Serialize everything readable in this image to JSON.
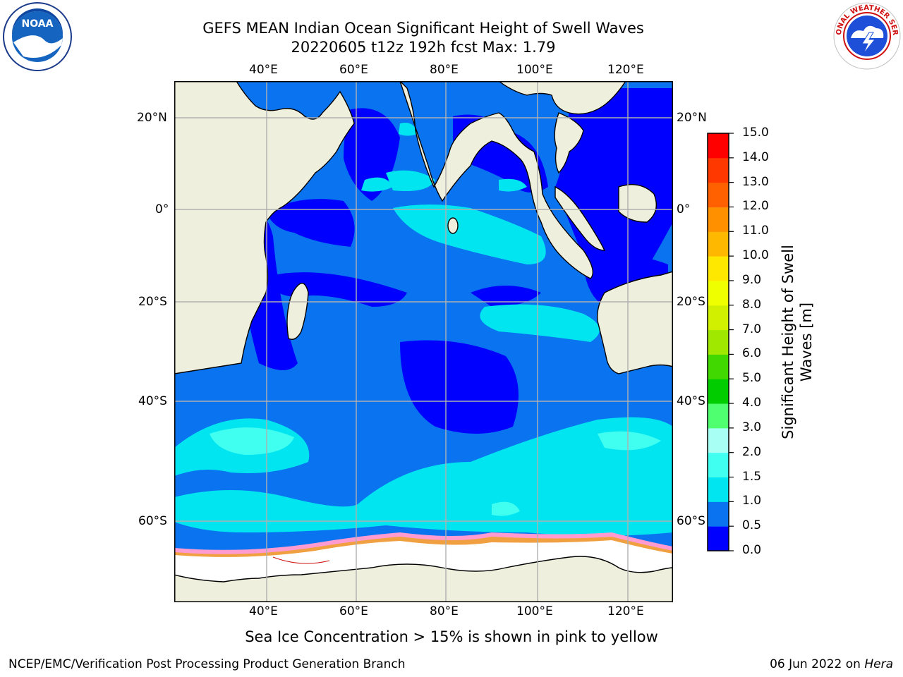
{
  "title_line1": "GEFS MEAN Indian Ocean Significant Height of Swell Waves",
  "title_line2": "20220605 t12z 192h fcst   Max: 1.79",
  "colorbar": {
    "label_line1": "Significant Height of Swell",
    "label_line2": "Waves [m]",
    "ticks": [
      "0.0",
      "0.5",
      "1.0",
      "1.5",
      "2.0",
      "3.0",
      "4.0",
      "5.0",
      "6.0",
      "7.0",
      "8.0",
      "9.0",
      "10.0",
      "11.0",
      "12.0",
      "13.0",
      "14.0",
      "15.0"
    ],
    "colors": [
      "#0000ff",
      "#0a74f0",
      "#00e5f0",
      "#40fff0",
      "#a8fff4",
      "#50ff70",
      "#00cc00",
      "#40d800",
      "#a0e800",
      "#d0f000",
      "#f0ff00",
      "#ffe800",
      "#ffb800",
      "#ff9000",
      "#ff6000",
      "#ff3800",
      "#ff0000"
    ]
  },
  "axes": {
    "lon_labels": [
      "40°E",
      "60°E",
      "80°E",
      "100°E",
      "120°E"
    ],
    "lat_labels_left": [
      "20°N",
      "0°",
      "20°S",
      "40°S",
      "60°S"
    ],
    "lat_labels_right": [
      "20°N",
      "0°",
      "20°S",
      "40°S",
      "60°S"
    ]
  },
  "caption": "Sea Ice Concentration > 15% is shown in pink to yellow",
  "footer_left": "NCEP/EMC/Verification Post Processing Product Generation Branch",
  "footer_right_prefix": "06 Jun 2022 on ",
  "footer_right_host": "Hera",
  "logos": {
    "left": "NOAA",
    "right_text": "NATIONAL WEATHER SERVICE"
  },
  "colors": {
    "land": "#efefde",
    "ice": "#ffffff",
    "grid": "#b0b0b0"
  }
}
